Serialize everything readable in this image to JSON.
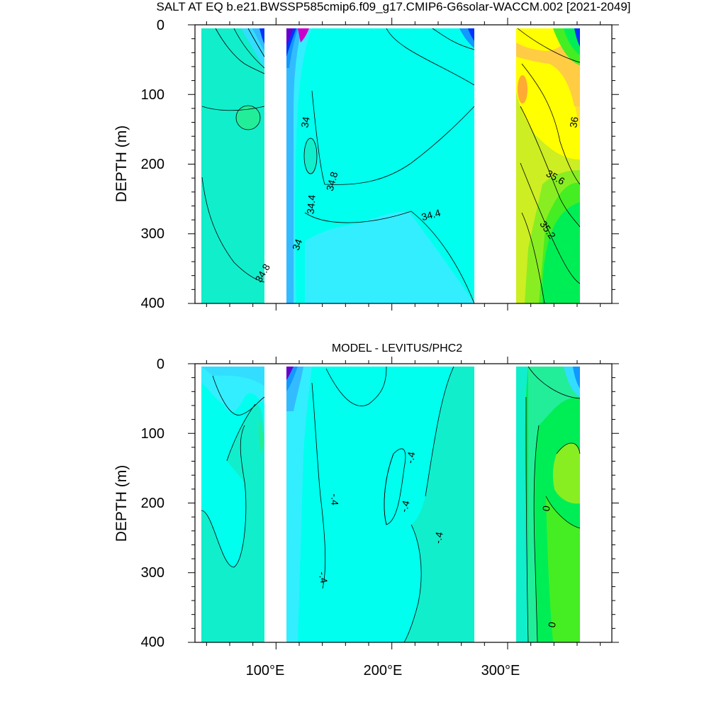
{
  "colors": {
    "background": "#ffffff",
    "axis": "#000000",
    "contour_line": "#000000",
    "land_mask": "#ffffff",
    "fill_low_magenta": "#cc00cc",
    "fill_low_purple": "#6600cc",
    "fill_low_navy": "#0000aa",
    "fill_deep_blue": "#0033ff",
    "fill_blue": "#0077ff",
    "fill_mid_blue": "#1199ff",
    "fill_sky": "#33bbff",
    "fill_light_sky": "#33ddff",
    "fill_cyan": "#33eeff",
    "fill_aqua": "#00ffee",
    "fill_aquamarine": "#11eecc",
    "fill_sea_green": "#22ee99",
    "fill_spring_green": "#00ee55",
    "fill_green": "#44ee22",
    "fill_lime": "#88ee22",
    "fill_yellow_green": "#ccee22",
    "fill_yellow": "#ffff00",
    "fill_light_orange": "#ffdd33",
    "fill_orange": "#ffcc44",
    "fill_dark_orange": "#ffaa33"
  },
  "chart_data": [
    {
      "type": "heatmap",
      "title": "SALT AT EQ b.e21.BWSSP585cmip6.f09_g17.CMIP6-G6solar-WACCM.002 [2021-2049]",
      "ylabel": "DEPTH (m)",
      "xlabel": "",
      "xlim": [
        30,
        390
      ],
      "ylim": [
        0,
        400
      ],
      "y_reversed": true,
      "yticks": [
        0,
        100,
        200,
        300,
        400
      ],
      "ytick_labels": [
        "0",
        "100",
        "200",
        "300",
        "400"
      ],
      "xticks": [
        100,
        200,
        300
      ],
      "show_x_tick_labels": false,
      "data_extent_x": [
        [
          45,
          98
        ],
        [
          118,
          280
        ],
        [
          315,
          370
        ]
      ],
      "contour_labels": [
        {
          "text": "34.8",
          "x": 89,
          "y": 357,
          "rotate": -60
        },
        {
          "text": "34",
          "x": 126,
          "y": 140,
          "rotate": -80
        },
        {
          "text": "34.8",
          "x": 149,
          "y": 225,
          "rotate": -75
        },
        {
          "text": "34.4",
          "x": 131,
          "y": 258,
          "rotate": -85
        },
        {
          "text": "34",
          "x": 119,
          "y": 316,
          "rotate": -70
        },
        {
          "text": "34.4",
          "x": 234,
          "y": 274,
          "rotate": -15
        },
        {
          "text": "36",
          "x": 358,
          "y": 140,
          "rotate": -80
        },
        {
          "text": "35.6",
          "x": 341,
          "y": 220,
          "rotate": 30
        },
        {
          "text": "35.2",
          "x": 334,
          "y": 295,
          "rotate": 55
        }
      ]
    },
    {
      "type": "heatmap",
      "title": "MODEL - LEVITUS/PHC2",
      "ylabel": "DEPTH (m)",
      "xlabel": "",
      "xlim": [
        30,
        390
      ],
      "ylim": [
        0,
        400
      ],
      "y_reversed": true,
      "yticks": [
        0,
        100,
        200,
        300,
        400
      ],
      "ytick_labels": [
        "0",
        "100",
        "200",
        "300",
        "400"
      ],
      "xticks": [
        100,
        200,
        300
      ],
      "xtick_labels": [
        "100°E",
        "200°E",
        "300°E"
      ],
      "show_x_tick_labels": true,
      "data_extent_x": [
        [
          45,
          98
        ],
        [
          118,
          280
        ],
        [
          315,
          370
        ]
      ],
      "contour_labels": [
        {
          "text": "-.4",
          "x": 217,
          "y": 135,
          "rotate": -80
        },
        {
          "text": "-.4",
          "x": 150,
          "y": 195,
          "rotate": 90
        },
        {
          "text": "-.4",
          "x": 212,
          "y": 205,
          "rotate": -75
        },
        {
          "text": "-.4",
          "x": 241,
          "y": 250,
          "rotate": -80
        },
        {
          "text": "-.4",
          "x": 140,
          "y": 307,
          "rotate": 80
        },
        {
          "text": "0",
          "x": 334,
          "y": 208,
          "rotate": -80
        },
        {
          "text": "0",
          "x": 339,
          "y": 375,
          "rotate": -80
        }
      ]
    }
  ]
}
